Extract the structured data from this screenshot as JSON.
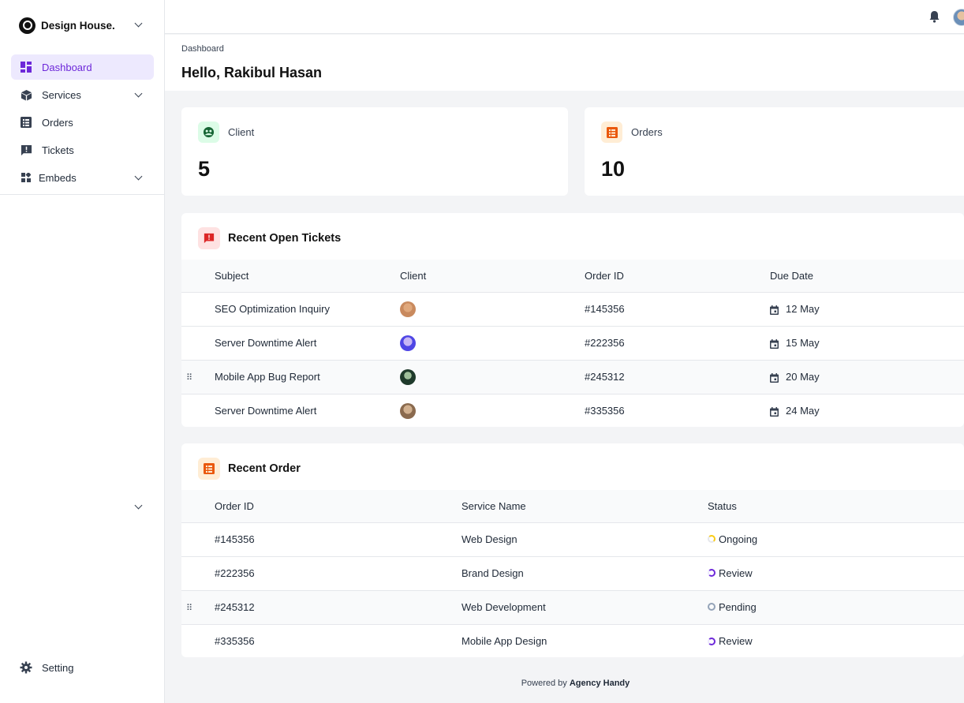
{
  "brand": {
    "name": "Design House."
  },
  "sidebar": {
    "items": [
      {
        "label": "Dashboard",
        "icon": "dashboard-icon",
        "active": true
      },
      {
        "label": "Services",
        "icon": "cube-icon",
        "expandable": true
      },
      {
        "label": "Orders",
        "icon": "list-icon"
      },
      {
        "label": "Tickets",
        "icon": "ticket-icon"
      },
      {
        "label": "Embeds",
        "icon": "widgets-icon",
        "expandable": true
      }
    ],
    "setting_label": "Setting"
  },
  "header": {
    "breadcrumb": "Dashboard",
    "greeting": "Hello, Rakibul Hasan"
  },
  "stats": [
    {
      "label": "Client",
      "value": "5",
      "icon": "client-icon",
      "color": "#166534",
      "bg": "#dcfce7"
    },
    {
      "label": "Orders",
      "value": "10",
      "icon": "orders-icon",
      "color": "#ea580c",
      "bg": "#ffedd5"
    }
  ],
  "tickets": {
    "title": "Recent Open Tickets",
    "columns": [
      "Subject",
      "Client",
      "Order ID",
      "Due Date"
    ],
    "rows": [
      {
        "subject": "SEO Optimization Inquiry",
        "order_id": "#145356",
        "due": "12 May",
        "avatar": "#c98a5e"
      },
      {
        "subject": "Server Downtime Alert",
        "order_id": "#222356",
        "due": "15 May",
        "avatar": "#4f46e5"
      },
      {
        "subject": "Mobile App Bug Report",
        "order_id": "#245312",
        "due": "20 May",
        "avatar": "#1f3a2b"
      },
      {
        "subject": "Server Downtime Alert",
        "order_id": "#335356",
        "due": "24 May",
        "avatar": "#8a6a4e"
      }
    ]
  },
  "orders": {
    "title": "Recent Order",
    "columns": [
      "Order ID",
      "Service Name",
      "Status"
    ],
    "rows": [
      {
        "order_id": "#145356",
        "service": "Web Design",
        "status": "Ongoing",
        "status_color": "#facc15"
      },
      {
        "order_id": "#222356",
        "service": "Brand Design",
        "status": "Review",
        "status_color": "#6d28d9"
      },
      {
        "order_id": "#245312",
        "service": "Web Development",
        "status": "Pending",
        "status_color": "#94a3b8"
      },
      {
        "order_id": "#335356",
        "service": "Mobile App Design",
        "status": "Review",
        "status_color": "#6d28d9"
      }
    ]
  },
  "footer": {
    "prefix": "Powered by",
    "company": "Agency Handy"
  }
}
